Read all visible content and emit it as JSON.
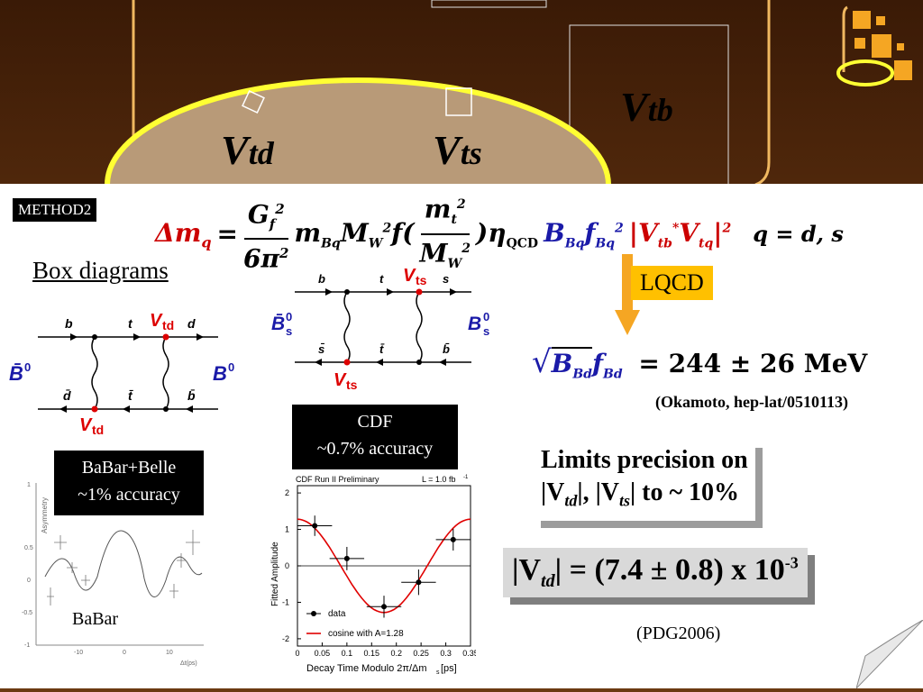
{
  "header": {
    "vtd": "V",
    "vtd_sub": "td",
    "vts": "V",
    "vts_sub": "ts",
    "vtb": "V",
    "vtb_sub": "tb"
  },
  "method_tag": "METHOD2",
  "formula": {
    "lhs": "Δm",
    "lhs_sub": "q",
    "eq": "=",
    "num": "G",
    "num_sub": "f",
    "num_sup": "2",
    "den": "6π",
    "den_sup": "2",
    "middle": "m",
    "middle_sub": "Bq",
    "mw": "M",
    "mw_sub": "W",
    "mw_sup": "2",
    "f_open": "f(",
    "mt": "m",
    "mt_sub": "t",
    "mt_sup": "2",
    "mw2": "M",
    "mw2_sub": "W",
    "mw2_sup": "2",
    "f_close": ")η",
    "eta_sub": "QCD",
    "blue_part": "B",
    "blue_sub": "Bq",
    "blue_f": "f",
    "blue_f_sub": "Bq",
    "blue_f_sup": "2",
    "red_part": "|V",
    "red_sub1": "tb",
    "red_star": "*",
    "red_v2": "V",
    "red_sub2": "tq",
    "red_end": "|",
    "red_sup": "2",
    "q_def": "q = d, s"
  },
  "box_diagrams_label": "Box diagrams",
  "left_diagram": {
    "top_left": "b",
    "top_mid": "t",
    "top_right_label": "V",
    "top_right_sub": "td",
    "top_right_q": "d",
    "bot_left": "d̄",
    "bot_mid": "t̄",
    "bot_right": "b̄",
    "bottom_label": "V",
    "bottom_sub": "td",
    "left_meson": "B̄",
    "left_meson_sup": "0",
    "right_meson": "B",
    "right_meson_sup": "0"
  },
  "mid_diagram": {
    "top_left": "b",
    "top_mid": "t",
    "top_right_label": "V",
    "top_right_sub": "ts",
    "top_right_q": "s",
    "bot_left": "s̄",
    "bot_mid": "t̄",
    "bot_right": "b̄",
    "bottom_label": "V",
    "bottom_sub": "ts",
    "left_meson": "B̄",
    "left_meson_sub": "s",
    "left_meson_sup": "0",
    "right_meson": "B",
    "right_meson_sub": "s",
    "right_meson_sup": "0"
  },
  "lqcd_label": "LQCD",
  "lqcd_result": {
    "sqrt": "√",
    "b": "B",
    "b_sub": "Bd",
    "f": "f",
    "f_sub": "Bd",
    "value": "= 244 ± 26 MeV"
  },
  "okamoto_ref": "(Okamoto, hep-lat/0510113)",
  "cdf_box": {
    "line1": "CDF",
    "line2": "~0.7% accuracy"
  },
  "babar_box": {
    "line1": "BaBar+Belle",
    "line2": "~1% accuracy"
  },
  "babar_label": "BaBar",
  "limits_box": {
    "line1": "Limits precision on",
    "line2_a": "|V",
    "line2_a_sub": "td",
    "line2_b": "|, |V",
    "line2_b_sub": "ts",
    "line2_c": "| to ~ 10%"
  },
  "vtd_result": {
    "a": "|V",
    "a_sub": "td",
    "b": "| = (7.4 ± 0.8) x 10",
    "b_sup": "-3"
  },
  "pdg_ref": "(PDG2006)",
  "cdf_plot": {
    "title_left": "CDF Run II Preliminary",
    "title_right": "L = 1.0 fb",
    "title_right_sup": "-1",
    "ylabel": "Fitted Amplitude",
    "xlabel": "Decay Time Modulo 2π/Δm",
    "xlabel_sub": "s",
    "xlabel_unit": " [ps]",
    "yticks": [
      "2",
      "1",
      "0",
      "-1",
      "-2"
    ],
    "xticks": [
      "0",
      "0.05",
      "0.1",
      "0.15",
      "0.2",
      "0.25",
      "0.3",
      "0.35"
    ],
    "legend_data": "data",
    "legend_fit": "cosine with A=1.28",
    "colors": {
      "fit": "#e00000",
      "data": "#000000"
    }
  },
  "babar_plot": {
    "ylabel": "Asymmetry",
    "xlabel": "Δt(ps)",
    "yticks": [
      "1",
      "0.5",
      "0",
      "-0.5",
      "-1"
    ],
    "xticks": [
      "-10",
      "0",
      "10"
    ]
  }
}
